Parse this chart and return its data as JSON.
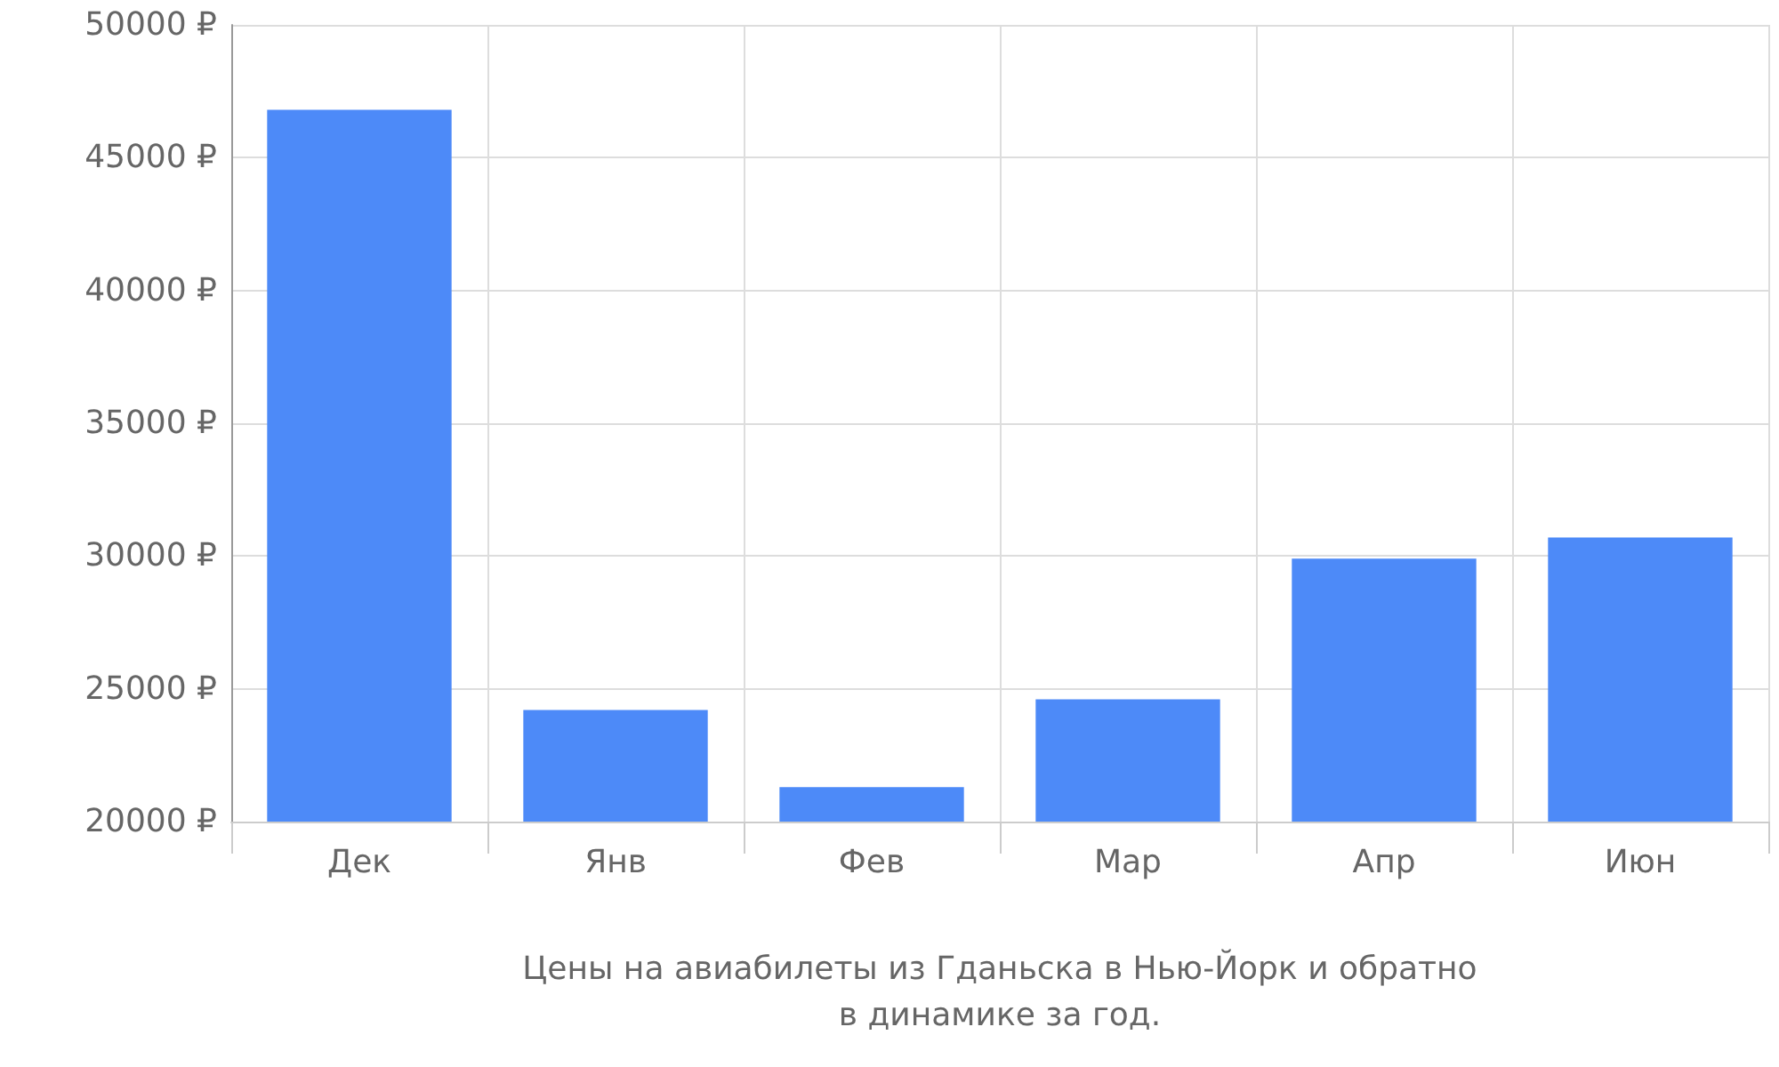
{
  "chart_data": {
    "type": "bar",
    "xlabel": "Цены на авиабилеты из Гданьска в Нью-Йорк и обратно\nв динамике за год.",
    "categories": [
      "Дек",
      "Янв",
      "Фев",
      "Мар",
      "Апр",
      "Июн"
    ],
    "values": [
      46800,
      24200,
      21300,
      24600,
      29900,
      30700
    ],
    "color": "#4d8af8",
    "ylim": [
      20000,
      50000
    ],
    "yticks": [
      {
        "value": 20000,
        "label": "20000 ₽"
      },
      {
        "value": 25000,
        "label": "25000 ₽"
      },
      {
        "value": 30000,
        "label": "30000 ₽"
      },
      {
        "value": 35000,
        "label": "35000 ₽"
      },
      {
        "value": 40000,
        "label": "40000 ₽"
      },
      {
        "value": 45000,
        "label": "45000 ₽"
      },
      {
        "value": 50000,
        "label": "50000 ₽"
      }
    ],
    "grid": true
  }
}
